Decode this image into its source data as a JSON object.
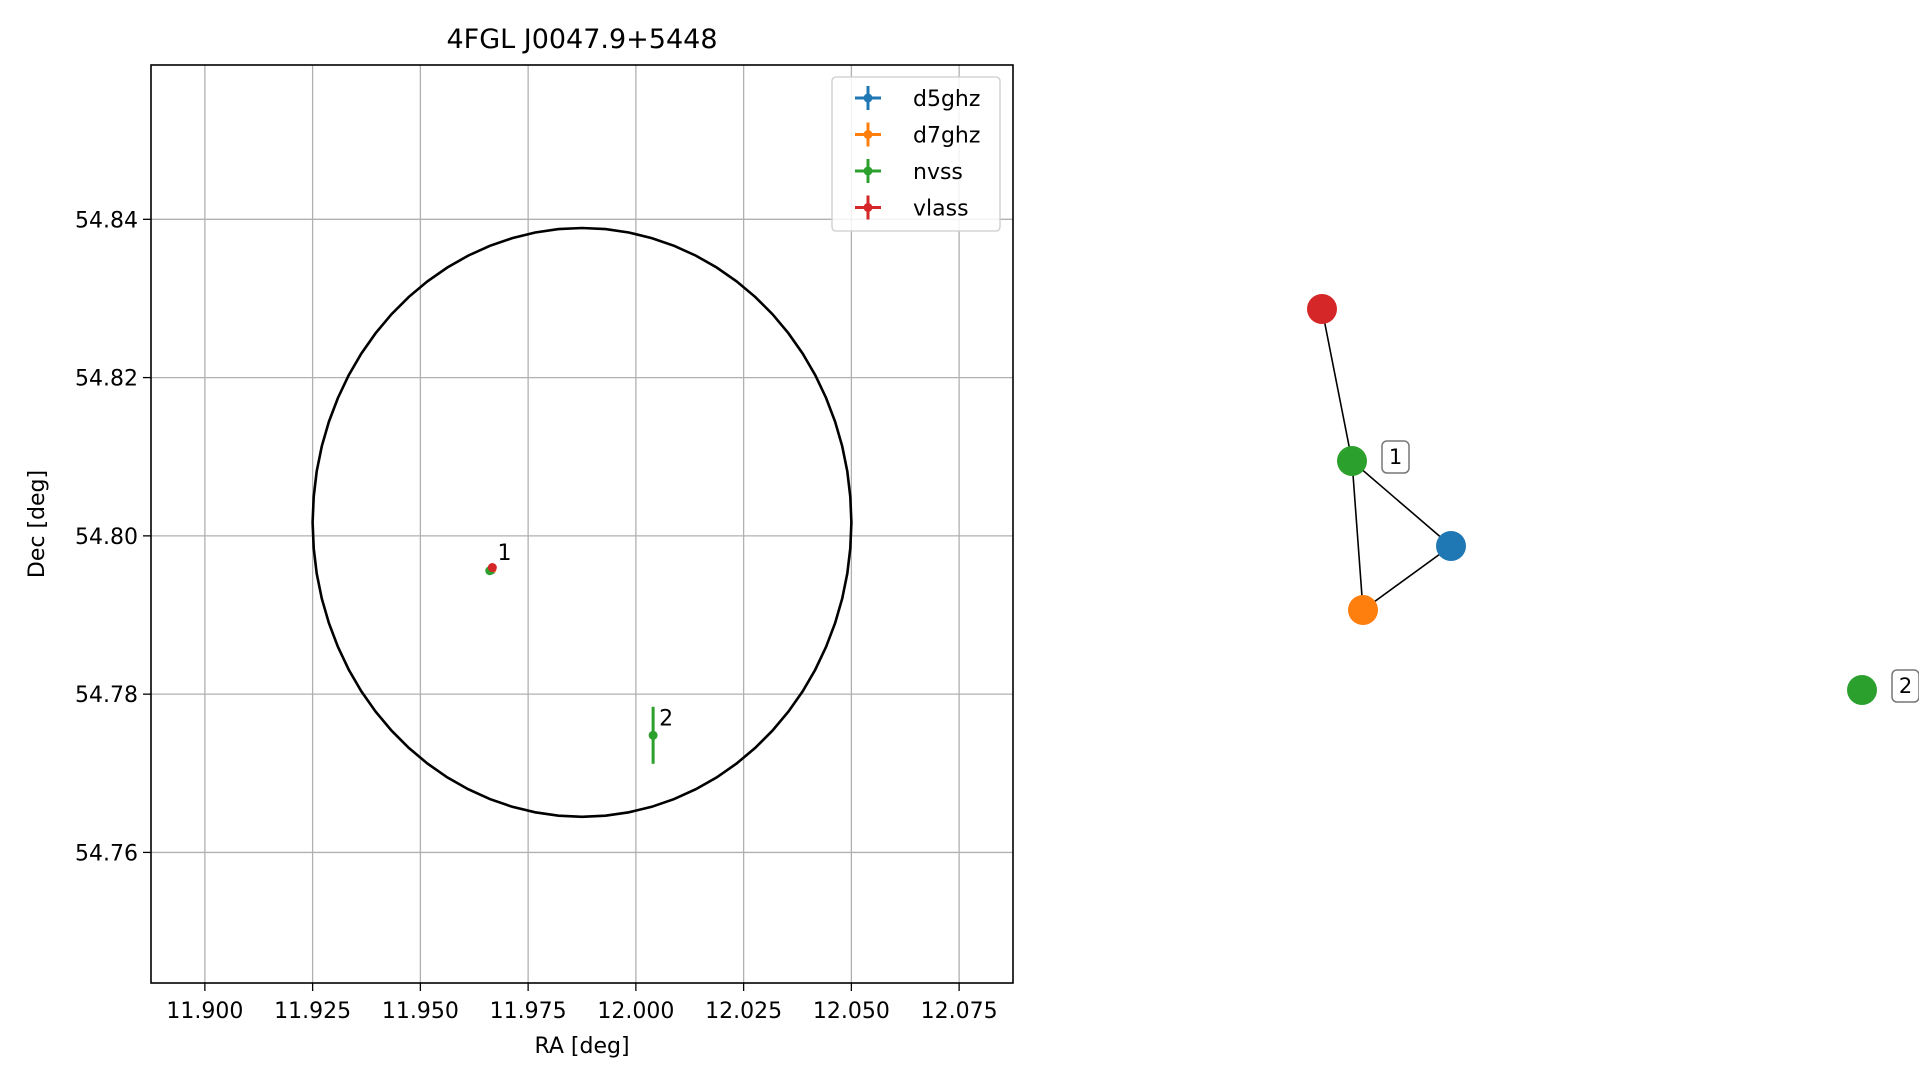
{
  "chart_data": [
    {
      "type": "scatter",
      "title": "4FGL J0047.9+5448",
      "xlabel": "RA [deg]",
      "ylabel": "Dec [deg]",
      "xlim": [
        11.8875,
        12.0875
      ],
      "ylim": [
        54.7435,
        54.8595
      ],
      "xticks": [
        "11.900",
        "11.925",
        "11.950",
        "11.975",
        "12.000",
        "12.025",
        "12.050",
        "12.075"
      ],
      "yticks": [
        "54.76",
        "54.78",
        "54.80",
        "54.82",
        "54.84"
      ],
      "grid": true,
      "legend_position": "upper right",
      "ellipse": {
        "center": [
          11.9875,
          54.8017
        ],
        "semi_axis_ra": 0.0625,
        "semi_axis_dec": 0.0372,
        "color": "#000000"
      },
      "series": [
        {
          "name": "d5ghz",
          "color": "#1f77b4",
          "points": [
            {
              "x": 11.9665,
              "y": 54.7957,
              "xerr": 0.0004,
              "yerr": 0.0003
            }
          ]
        },
        {
          "name": "d7ghz",
          "color": "#ff7f0e",
          "points": [
            {
              "x": 11.9666,
              "y": 54.7958,
              "xerr": 0.0004,
              "yerr": 0.0003
            }
          ]
        },
        {
          "name": "nvss",
          "color": "#2ca02c",
          "points": [
            {
              "x": 11.9661,
              "y": 54.7956,
              "xerr": 0.0008,
              "yerr": 0.0005
            },
            {
              "x": 12.004,
              "y": 54.7748,
              "xerr": 0.0005,
              "yerr": 0.0036
            }
          ]
        },
        {
          "name": "vlass",
          "color": "#d62728",
          "points": [
            {
              "x": 11.9667,
              "y": 54.796,
              "xerr": 0.0003,
              "yerr": 0.0003
            }
          ]
        }
      ],
      "annotations": [
        {
          "text": "1",
          "x": 11.9665,
          "y": 54.7957
        },
        {
          "text": "2",
          "x": 12.004,
          "y": 54.7748
        }
      ]
    },
    {
      "type": "graph",
      "nodes": [
        {
          "id": "vlass",
          "color": "#d62728",
          "label": ""
        },
        {
          "id": "nvss-1",
          "color": "#2ca02c",
          "label": "1"
        },
        {
          "id": "d5ghz",
          "color": "#1f77b4",
          "label": ""
        },
        {
          "id": "d7ghz",
          "color": "#ff7f0e",
          "label": ""
        },
        {
          "id": "nvss-2",
          "color": "#2ca02c",
          "label": "2"
        }
      ],
      "edges": [
        [
          "vlass",
          "nvss-1"
        ],
        [
          "nvss-1",
          "d5ghz"
        ],
        [
          "nvss-1",
          "d7ghz"
        ],
        [
          "d5ghz",
          "d7ghz"
        ]
      ]
    }
  ]
}
